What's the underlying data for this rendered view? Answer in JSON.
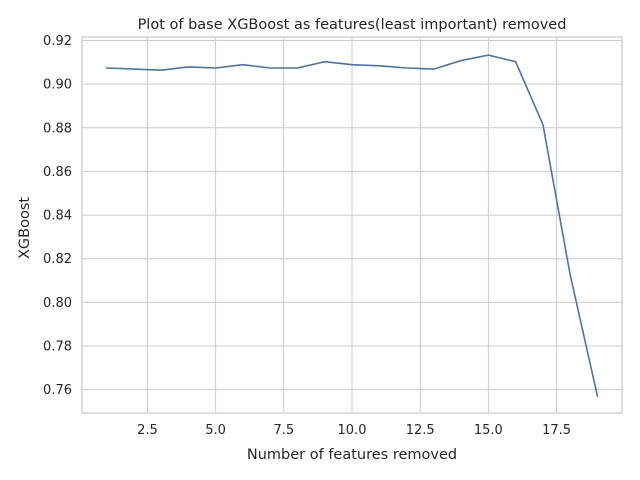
{
  "chart_data": {
    "type": "line",
    "title": "Plot of base XGBoost as features(least important) removed",
    "xlabel": "Number of features removed",
    "ylabel": "XGBoost",
    "xlim": [
      0.1,
      19.9
    ],
    "ylim": [
      0.7493,
      0.9216
    ],
    "xticks": [
      2.5,
      5.0,
      7.5,
      10.0,
      12.5,
      15.0,
      17.5
    ],
    "xtick_labels": [
      "2.5",
      "5.0",
      "7.5",
      "10.0",
      "12.5",
      "15.0",
      "17.5"
    ],
    "yticks": [
      0.76,
      0.78,
      0.8,
      0.82,
      0.84,
      0.86,
      0.88,
      0.9,
      0.92
    ],
    "ytick_labels": [
      "0.76",
      "0.78",
      "0.80",
      "0.82",
      "0.84",
      "0.86",
      "0.88",
      "0.90",
      "0.92"
    ],
    "grid": true,
    "legend": "none",
    "series": [
      {
        "color": "#4c72b0",
        "x": [
          1,
          2,
          3,
          4,
          5,
          6,
          7,
          8,
          9,
          10,
          11,
          12,
          13,
          14,
          15,
          16,
          17,
          18,
          19
        ],
        "values": [
          0.9074,
          0.9069,
          0.9064,
          0.9079,
          0.9074,
          0.9089,
          0.9074,
          0.9074,
          0.9103,
          0.9089,
          0.9084,
          0.9074,
          0.9069,
          0.9108,
          0.9133,
          0.9103,
          0.8815,
          0.8126,
          0.757
        ]
      }
    ]
  }
}
